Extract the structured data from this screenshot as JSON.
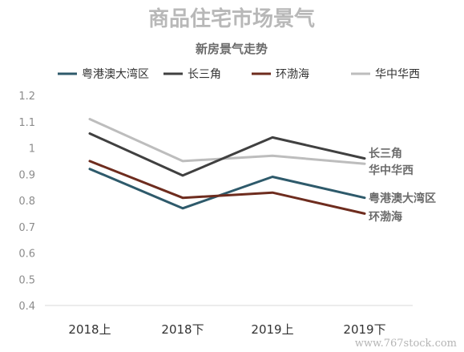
{
  "chart_data": {
    "type": "line",
    "title": "商品住宅市场景气",
    "subtitle": "新房景气走势",
    "categories": [
      "2018上",
      "2018下",
      "2019上",
      "2019下"
    ],
    "ylim": [
      0.4,
      1.2
    ],
    "yticks": [
      "1.2",
      "1.1",
      "1",
      "0.9",
      "0.8",
      "0.7",
      "0.6",
      "0.5",
      "0.4"
    ],
    "grid": false,
    "legend_position": "top",
    "series": [
      {
        "name": "粤港澳大湾区",
        "color": "#2e5a6b",
        "values": [
          0.92,
          0.77,
          0.89,
          0.81
        ]
      },
      {
        "name": "长三角",
        "color": "#404040",
        "values": [
          1.055,
          0.895,
          1.04,
          0.96
        ]
      },
      {
        "name": "环渤海",
        "color": "#6e2c1e",
        "values": [
          0.95,
          0.81,
          0.83,
          0.75
        ]
      },
      {
        "name": "华中华西",
        "color": "#bdbdbd",
        "values": [
          1.11,
          0.95,
          0.97,
          0.94
        ]
      }
    ],
    "end_labels": [
      {
        "text": "长三角",
        "series": 1
      },
      {
        "text": "华中华西",
        "series": 3
      },
      {
        "text": "粤港澳大湾区",
        "series": 0
      },
      {
        "text": "环渤海",
        "series": 2
      }
    ]
  },
  "watermark": "www.767stock.com"
}
